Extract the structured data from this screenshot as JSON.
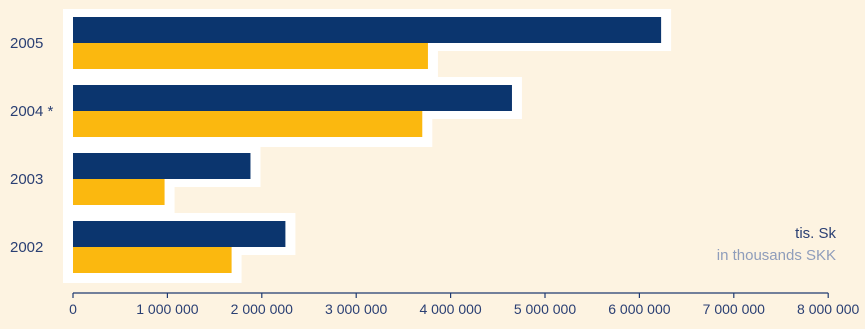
{
  "colors": {
    "background": "#fdf3e1",
    "series_primary": "#0b356e",
    "series_secondary": "#fbb80f",
    "highlight": "#ffffff",
    "axis": "#1f3a70",
    "text": "#2a3f73",
    "text_muted": "#8f9dbb"
  },
  "unit_label_sk": "tis. Sk",
  "unit_label_en": "in thousands SKK",
  "chart_data": {
    "type": "bar",
    "orientation": "horizontal",
    "categories": [
      "2005",
      "2004 *",
      "2003",
      "2002"
    ],
    "series": [
      {
        "color": "#0b356e",
        "values": [
          6230000,
          4650000,
          1880000,
          2250000
        ]
      },
      {
        "color": "#fbb80f",
        "values": [
          3760000,
          3700000,
          970000,
          1680000
        ]
      }
    ],
    "x_ticks": [
      {
        "value": 0,
        "label": "0"
      },
      {
        "value": 1000000,
        "label": "1 000 000"
      },
      {
        "value": 2000000,
        "label": "2 000 000"
      },
      {
        "value": 3000000,
        "label": "3 000 000"
      },
      {
        "value": 4000000,
        "label": "4 000 000"
      },
      {
        "value": 5000000,
        "label": "5 000 000"
      },
      {
        "value": 6000000,
        "label": "6 000 000"
      },
      {
        "value": 7000000,
        "label": "7 000 000"
      },
      {
        "value": 8000000,
        "label": "8 000 000"
      }
    ],
    "xlim": [
      0,
      8000000
    ],
    "grid": false,
    "legend": "none",
    "title": "",
    "xlabel": "",
    "ylabel": ""
  }
}
